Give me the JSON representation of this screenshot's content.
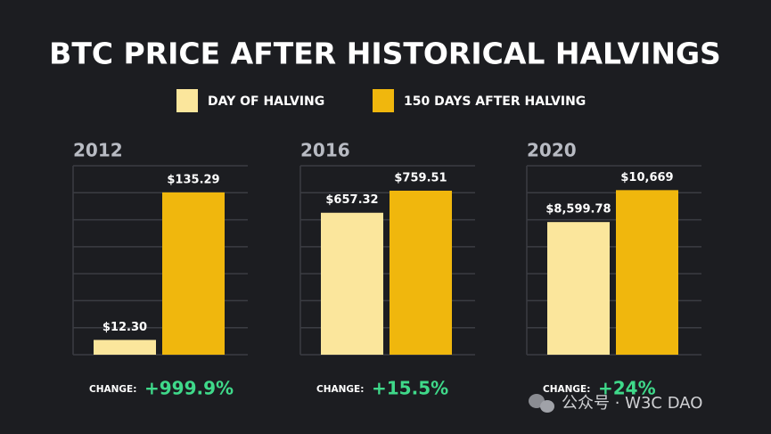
{
  "title": "BTC PRICE AFTER HISTORICAL HALVINGS",
  "legend": [
    {
      "name": "DAY OF HALVING",
      "color": "#fbe69c"
    },
    {
      "name": "150 DAYS AFTER HALVING",
      "color": "#f0b70d"
    }
  ],
  "chart_data": [
    {
      "type": "bar",
      "title": "2012",
      "values": [
        12.3,
        135.29
      ],
      "value_labels": [
        "$12.30",
        "$135.29"
      ],
      "ylim": [
        0,
        157.5
      ],
      "yticks": [
        0,
        22.5,
        45,
        67.5,
        90,
        112.5,
        135,
        157.5
      ],
      "grid": true,
      "change_label": "CHANGE:",
      "change": "+999.9%"
    },
    {
      "type": "bar",
      "title": "2016",
      "values": [
        657.32,
        759.51
      ],
      "value_labels": [
        "$657.32",
        "$759.51"
      ],
      "ylim": [
        0,
        875
      ],
      "yticks": [
        0,
        125,
        250,
        375,
        500,
        625,
        750,
        875
      ],
      "grid": true,
      "change_label": "CHANGE:",
      "change": "+15.5%"
    },
    {
      "type": "bar",
      "title": "2020",
      "values": [
        8599.78,
        10669
      ],
      "value_labels": [
        "$8,599.78",
        "$10,669"
      ],
      "ylim": [
        0,
        12250
      ],
      "yticks": [
        0,
        1750,
        3500,
        5250,
        7000,
        8750,
        10500,
        12250
      ],
      "grid": true,
      "change_label": "CHANGE:",
      "change": "+24%"
    }
  ],
  "watermark": "公众号 · W3C DAO"
}
